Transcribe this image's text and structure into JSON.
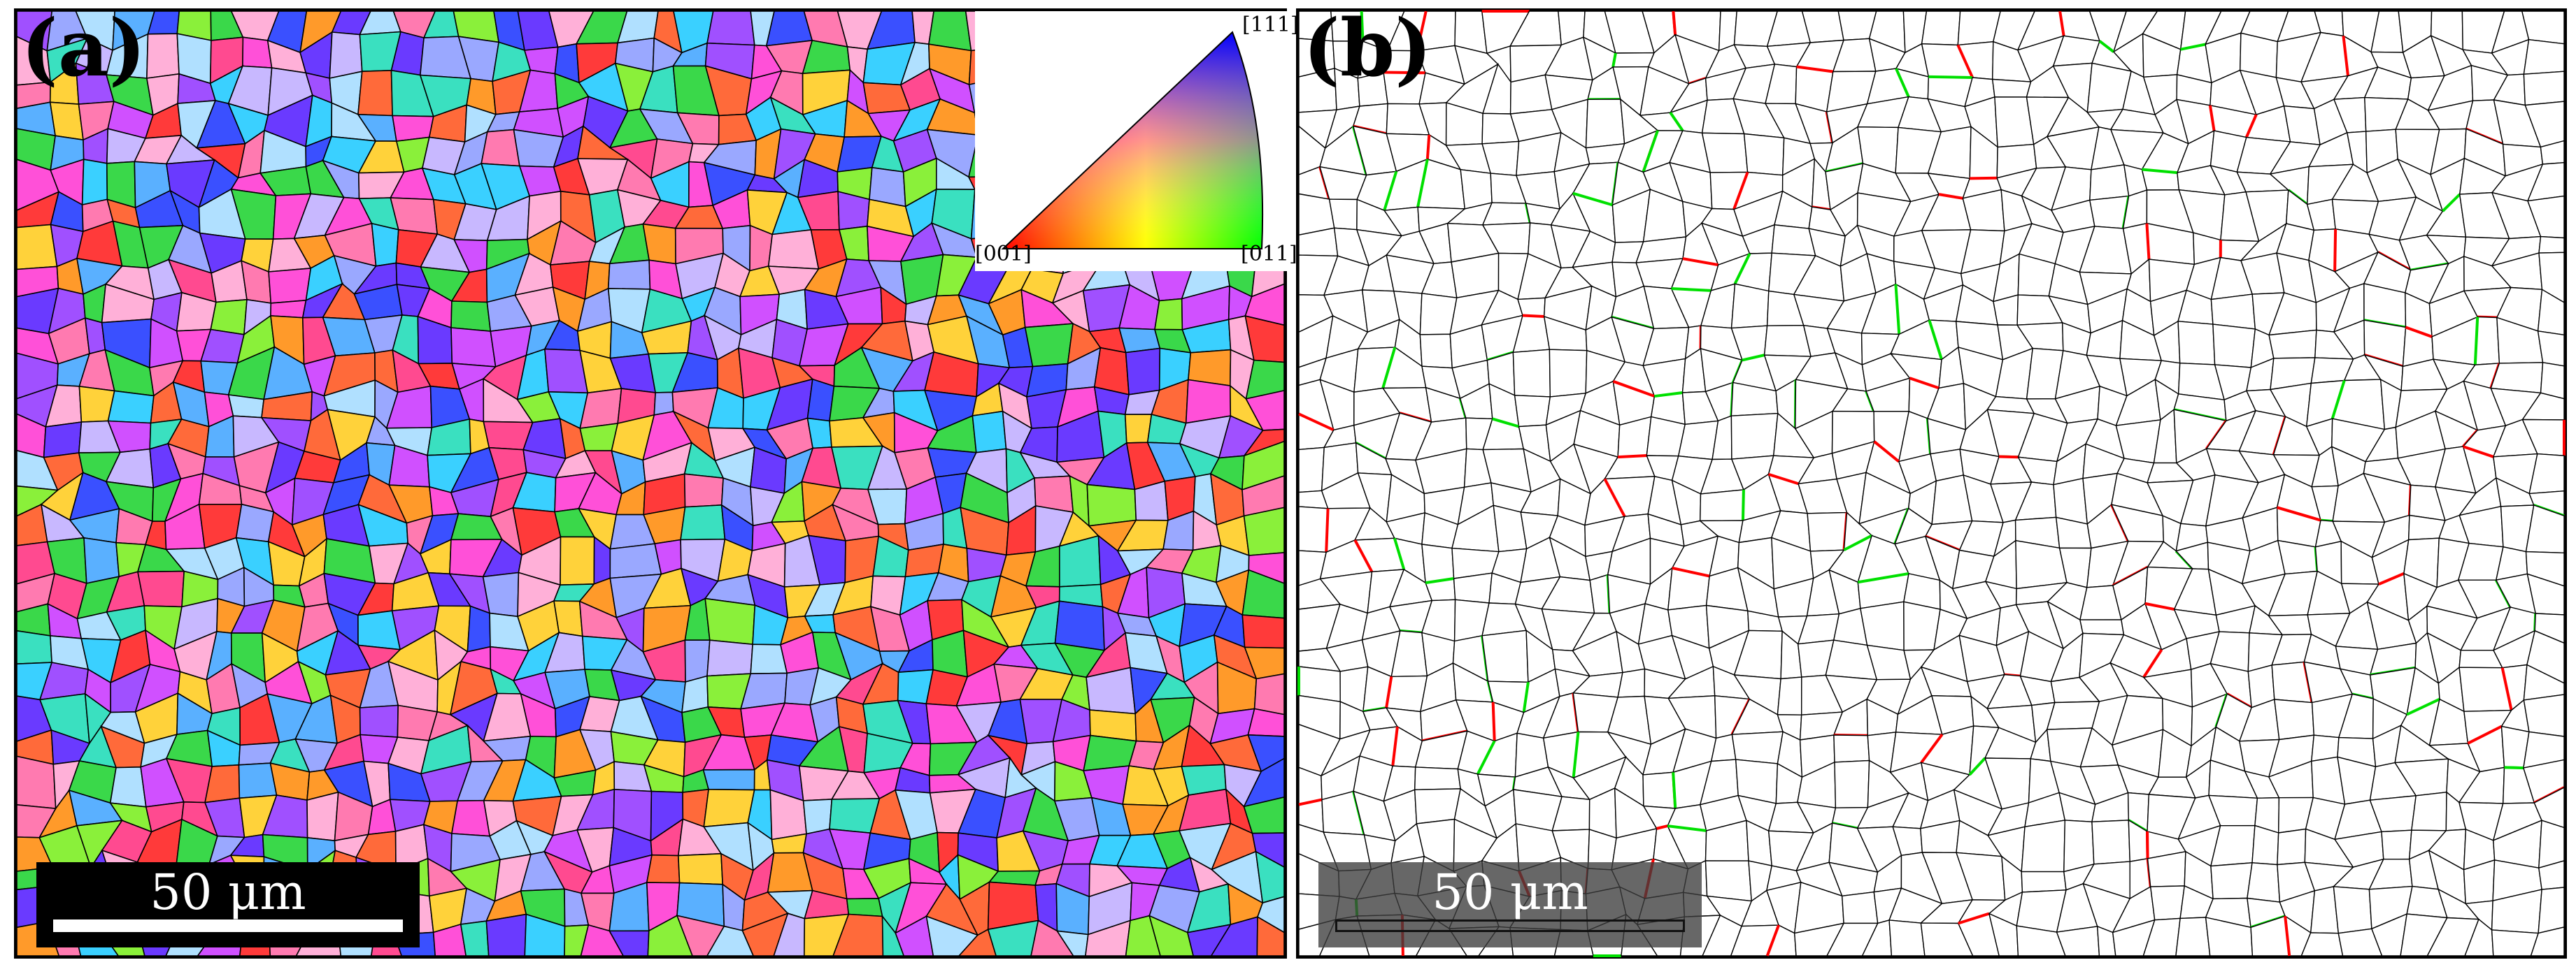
{
  "panels": {
    "a": {
      "label": "(a)",
      "scale_label": "50 μm"
    },
    "b": {
      "label": "(b)",
      "scale_label": "50 μm"
    }
  },
  "legend": {
    "corner_top": "[111]",
    "corner_bottom_left": "[001]",
    "corner_bottom_right": "[011]"
  },
  "colors": {
    "grain_palette": [
      "#ff3a3a",
      "#ff6a3a",
      "#ff9a2a",
      "#ffd23a",
      "#8af03a",
      "#3ad84a",
      "#3ae0c0",
      "#3ad0ff",
      "#5ab0ff",
      "#3a50ff",
      "#6a3aff",
      "#a050ff",
      "#d050ff",
      "#ff50d8",
      "#ff4a90",
      "#c8b8ff",
      "#b0e0ff",
      "#9aa8ff",
      "#ff7ab0",
      "#ffb0d8"
    ],
    "boundary_black": "#000000",
    "boundary_red": "#ff0000",
    "boundary_green": "#00e000"
  }
}
